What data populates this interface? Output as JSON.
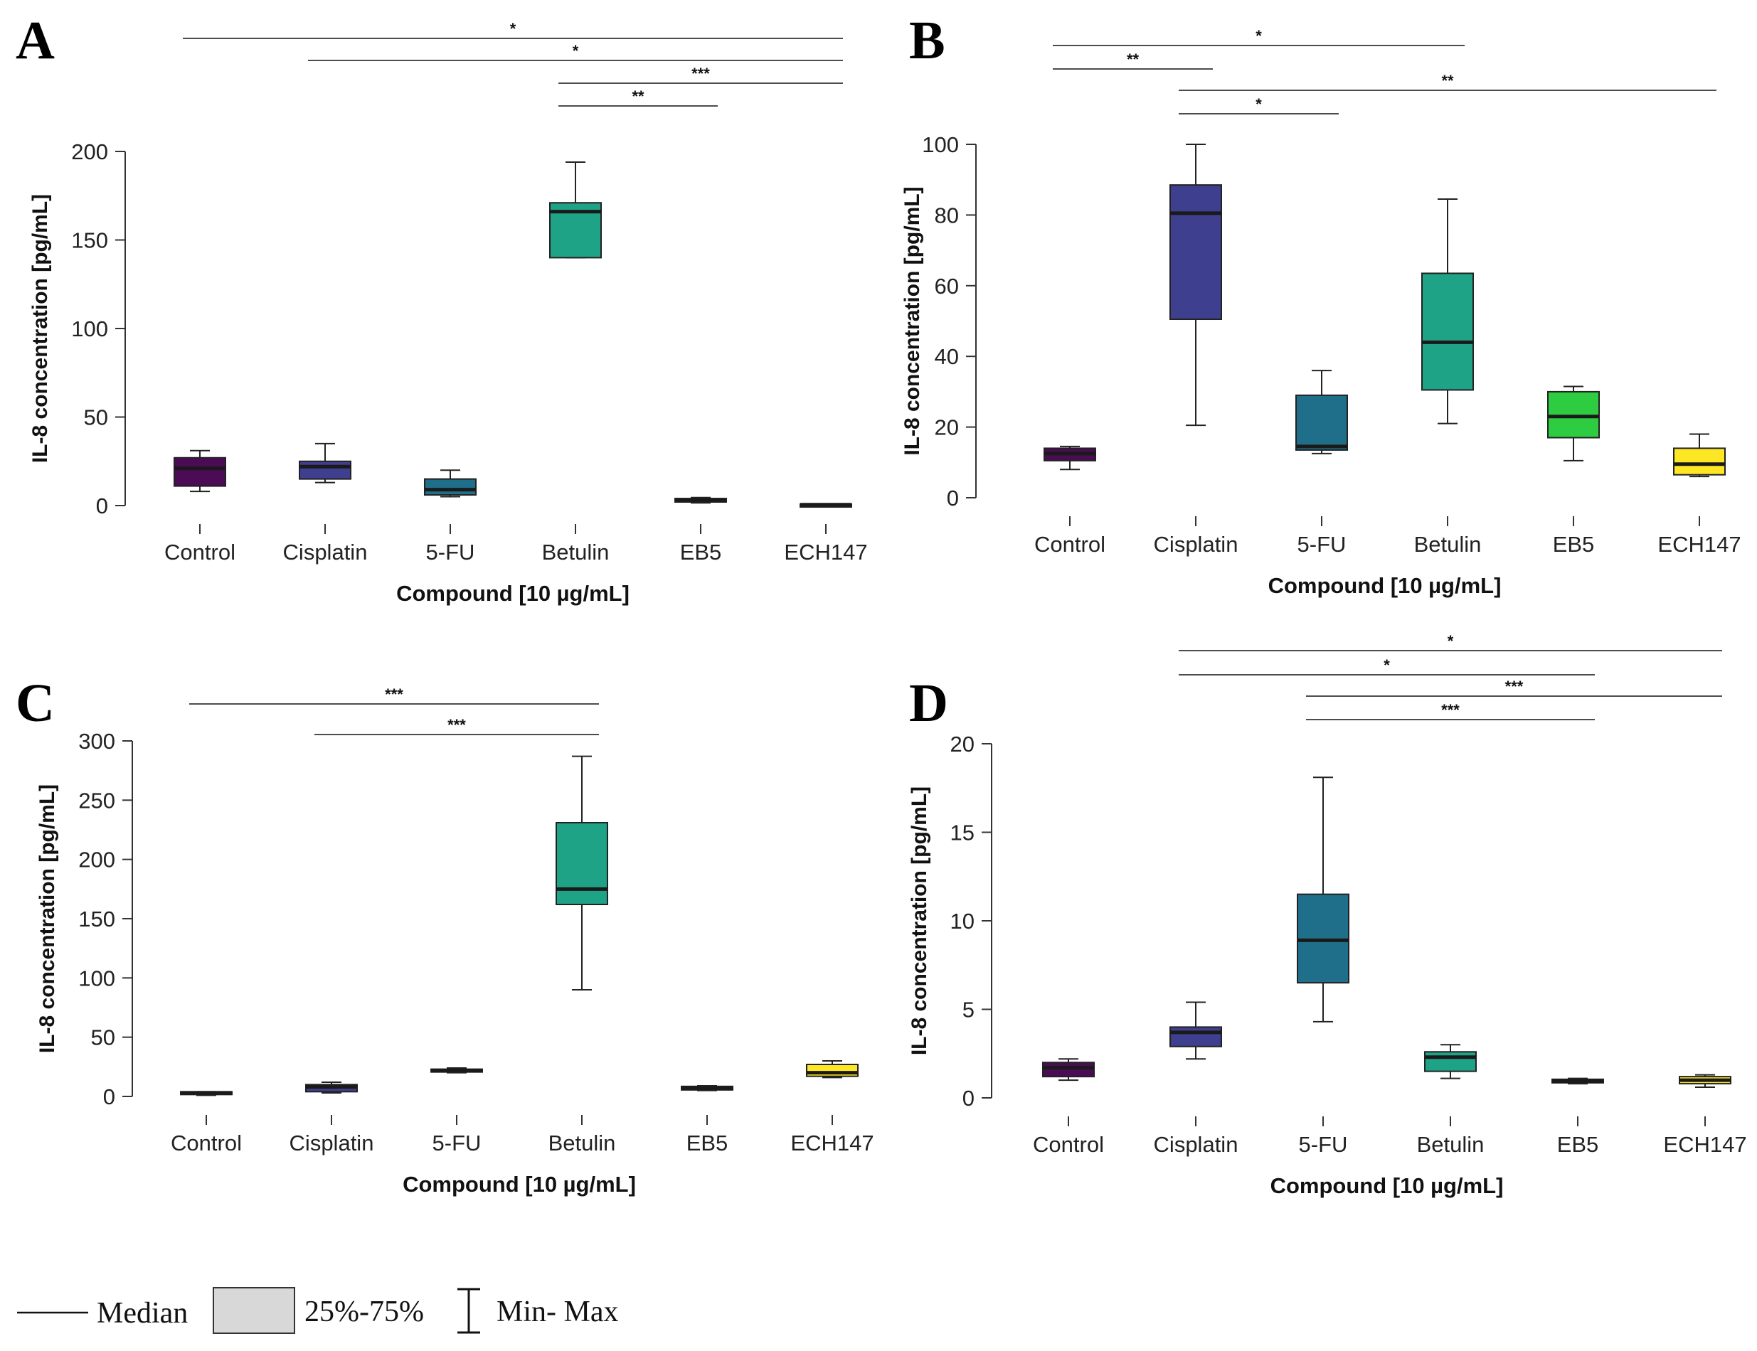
{
  "chart_data": [
    {
      "type": "boxplot",
      "panel": "A",
      "xlabel": "Compound [10 µg/mL]",
      "ylabel": "IL-8 concentration [pg/mL]",
      "ylim": [
        0,
        200
      ],
      "yticks": [
        0,
        50,
        100,
        150,
        200
      ],
      "categories": [
        "Control",
        "Cisplatin",
        "5-FU",
        "Betulin",
        "EB5",
        "ECH147"
      ],
      "colors": [
        "#4b0c55",
        "#3f3f8f",
        "#1f6f8b",
        "#1fa386",
        "#2ecc40",
        "#fde725"
      ],
      "boxes": [
        {
          "min": 8,
          "q1": 11,
          "median": 21,
          "q3": 27,
          "max": 31
        },
        {
          "min": 13,
          "q1": 15,
          "median": 22,
          "q3": 25,
          "max": 35
        },
        {
          "min": 5,
          "q1": 6,
          "median": 9,
          "q3": 15,
          "max": 20
        },
        {
          "min": 140,
          "q1": 140,
          "median": 166,
          "q3": 171,
          "max": 194
        },
        {
          "min": 1.5,
          "q1": 2,
          "median": 3,
          "q3": 4,
          "max": 4.5
        },
        {
          "min": 0,
          "q1": 0.2,
          "median": 0.5,
          "q3": 0.8,
          "max": 1
        }
      ],
      "significance": [
        {
          "from": 0,
          "to": 5,
          "label": "*"
        },
        {
          "from": 1,
          "to": 5,
          "label": "*"
        },
        {
          "from": 3,
          "to": 5,
          "label": "***"
        },
        {
          "from": 3,
          "to": 4,
          "label": "**"
        }
      ]
    },
    {
      "type": "boxplot",
      "panel": "B",
      "xlabel": "Compound [10 µg/mL]",
      "ylabel": "IL-8 concentration [pg/mL]",
      "ylim": [
        0,
        100
      ],
      "yticks": [
        0,
        20,
        40,
        60,
        80,
        100
      ],
      "categories": [
        "Control",
        "Cisplatin",
        "5-FU",
        "Betulin",
        "EB5",
        "ECH147"
      ],
      "colors": [
        "#4b0c55",
        "#3f3f8f",
        "#1f6f8b",
        "#1fa386",
        "#2ecc40",
        "#fde725"
      ],
      "boxes": [
        {
          "min": 8,
          "q1": 10.5,
          "median": 12.5,
          "q3": 14,
          "max": 14.5
        },
        {
          "min": 20.5,
          "q1": 50.5,
          "median": 80.5,
          "q3": 88.5,
          "max": 100
        },
        {
          "min": 12.5,
          "q1": 13.5,
          "median": 14.5,
          "q3": 29,
          "max": 36
        },
        {
          "min": 21,
          "q1": 30.5,
          "median": 44,
          "q3": 63.5,
          "max": 84.5
        },
        {
          "min": 10.5,
          "q1": 17,
          "median": 23,
          "q3": 30,
          "max": 31.5
        },
        {
          "min": 6,
          "q1": 6.5,
          "median": 9.5,
          "q3": 14,
          "max": 18
        }
      ],
      "significance": [
        {
          "from": 0,
          "to": 3,
          "label": "*"
        },
        {
          "from": 0,
          "to": 1,
          "label": "**"
        },
        {
          "from": 1,
          "to": 5,
          "label": "**"
        },
        {
          "from": 1,
          "to": 2,
          "label": "*"
        }
      ]
    },
    {
      "type": "boxplot",
      "panel": "C",
      "xlabel": "Compound [10 µg/mL]",
      "ylabel": "IL-8 concentration [pg/mL]",
      "ylim": [
        0,
        300
      ],
      "yticks": [
        0,
        50,
        100,
        150,
        200,
        250,
        300
      ],
      "categories": [
        "Control",
        "Cisplatin",
        "5-FU",
        "Betulin",
        "EB5",
        "ECH147"
      ],
      "colors": [
        "#4b0c55",
        "#3f3f8f",
        "#1f6f8b",
        "#1fa386",
        "#2ecc40",
        "#fde725"
      ],
      "boxes": [
        {
          "min": 1,
          "q1": 2,
          "median": 3,
          "q3": 4,
          "max": 4
        },
        {
          "min": 3,
          "q1": 4,
          "median": 8,
          "q3": 10,
          "max": 12
        },
        {
          "min": 20,
          "q1": 21,
          "median": 22,
          "q3": 23,
          "max": 24
        },
        {
          "min": 90,
          "q1": 162,
          "median": 175,
          "q3": 231,
          "max": 287
        },
        {
          "min": 5,
          "q1": 5.5,
          "median": 7,
          "q3": 8.5,
          "max": 9
        },
        {
          "min": 16,
          "q1": 17,
          "median": 20,
          "q3": 27,
          "max": 30
        }
      ],
      "significance": [
        {
          "from": 0,
          "to": 3,
          "label": "***"
        },
        {
          "from": 1,
          "to": 3,
          "label": "***"
        }
      ]
    },
    {
      "type": "boxplot",
      "panel": "D",
      "xlabel": "Compound [10 µg/mL]",
      "ylabel": "IL-8 concentration [pg/mL]",
      "ylim": [
        0,
        20
      ],
      "yticks": [
        0,
        5,
        10,
        15,
        20
      ],
      "categories": [
        "Control",
        "Cisplatin",
        "5-FU",
        "Betulin",
        "EB5",
        "ECH147"
      ],
      "colors": [
        "#4b0c55",
        "#3f3f8f",
        "#1f6f8b",
        "#1fa386",
        "#2ecc40",
        "#fde725"
      ],
      "boxes": [
        {
          "min": 1.0,
          "q1": 1.2,
          "median": 1.7,
          "q3": 2.0,
          "max": 2.2
        },
        {
          "min": 2.2,
          "q1": 2.9,
          "median": 3.7,
          "q3": 4.0,
          "max": 5.4
        },
        {
          "min": 4.3,
          "q1": 6.5,
          "median": 8.9,
          "q3": 11.5,
          "max": 18.1
        },
        {
          "min": 1.1,
          "q1": 1.5,
          "median": 2.3,
          "q3": 2.6,
          "max": 3.0
        },
        {
          "min": 0.8,
          "q1": 0.85,
          "median": 0.95,
          "q3": 1.05,
          "max": 1.1
        },
        {
          "min": 0.6,
          "q1": 0.8,
          "median": 1.0,
          "q3": 1.2,
          "max": 1.3
        }
      ],
      "significance": [
        {
          "from": 1,
          "to": 5,
          "label": "*"
        },
        {
          "from": 1,
          "to": 4,
          "label": "*"
        },
        {
          "from": 2,
          "to": 5,
          "label": "***"
        },
        {
          "from": 2,
          "to": 4,
          "label": "***"
        }
      ]
    }
  ],
  "legend": {
    "median_label": "Median",
    "box_label": "25%-75%",
    "whisker_label": "Min- Max"
  }
}
